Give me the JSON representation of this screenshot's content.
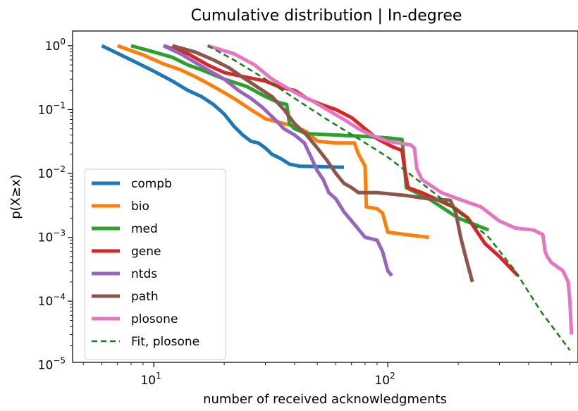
{
  "chart_data": {
    "type": "line",
    "title": "Cumulative distribution | In-degree",
    "xlabel": "number of received acknowledgments",
    "ylabel": "p(X≥x)",
    "xscale": "log",
    "yscale": "log",
    "xlim": [
      4.5,
      650
    ],
    "ylim": [
      1.1e-05,
      1.7
    ],
    "x_ticks": [
      {
        "value": 10,
        "base": "10",
        "exp": "1"
      },
      {
        "value": 100,
        "base": "10",
        "exp": "2"
      }
    ],
    "y_ticks": [
      {
        "value": 1,
        "base": "10",
        "exp": "0"
      },
      {
        "value": 0.1,
        "base": "10",
        "exp": "−1"
      },
      {
        "value": 0.01,
        "base": "10",
        "exp": "−2"
      },
      {
        "value": 0.001,
        "base": "10",
        "exp": "−3"
      },
      {
        "value": 0.0001,
        "base": "10",
        "exp": "−4"
      },
      {
        "value": 1e-05,
        "base": "10",
        "exp": "−5"
      }
    ],
    "grid": false,
    "legend_position": "lower-left",
    "series": [
      {
        "name": "compb",
        "color": "#1f77b4",
        "dash": "solid",
        "points": [
          [
            6,
            1
          ],
          [
            8,
            0.6
          ],
          [
            10,
            0.4
          ],
          [
            12,
            0.28
          ],
          [
            14,
            0.2
          ],
          [
            16,
            0.16
          ],
          [
            18,
            0.12
          ],
          [
            20,
            0.085
          ],
          [
            22,
            0.055
          ],
          [
            24,
            0.04
          ],
          [
            26,
            0.032
          ],
          [
            28,
            0.03
          ],
          [
            30,
            0.025
          ],
          [
            32,
            0.02
          ],
          [
            35,
            0.017
          ],
          [
            38,
            0.014
          ],
          [
            42,
            0.013
          ],
          [
            50,
            0.0128
          ],
          [
            65,
            0.0125
          ]
        ]
      },
      {
        "name": "bio",
        "color": "#ff7f0e",
        "dash": "solid",
        "points": [
          [
            7,
            1
          ],
          [
            9,
            0.72
          ],
          [
            11,
            0.52
          ],
          [
            13,
            0.42
          ],
          [
            15,
            0.33
          ],
          [
            18,
            0.23
          ],
          [
            22,
            0.15
          ],
          [
            26,
            0.1
          ],
          [
            30,
            0.072
          ],
          [
            35,
            0.062
          ],
          [
            40,
            0.055
          ],
          [
            45,
            0.045
          ],
          [
            50,
            0.032
          ],
          [
            60,
            0.03
          ],
          [
            72,
            0.03
          ],
          [
            75,
            0.02
          ],
          [
            80,
            0.013
          ],
          [
            81,
            0.003
          ],
          [
            90,
            0.0028
          ],
          [
            95,
            0.0024
          ],
          [
            100,
            0.0012
          ],
          [
            120,
            0.0011
          ],
          [
            150,
            0.001
          ]
        ]
      },
      {
        "name": "med",
        "color": "#2ca02c",
        "dash": "solid",
        "points": [
          [
            8,
            1
          ],
          [
            10,
            0.8
          ],
          [
            12,
            0.66
          ],
          [
            14,
            0.5
          ],
          [
            16,
            0.42
          ],
          [
            20,
            0.3
          ],
          [
            25,
            0.23
          ],
          [
            30,
            0.16
          ],
          [
            34,
            0.13
          ],
          [
            37,
            0.12
          ],
          [
            38,
            0.06
          ],
          [
            40,
            0.05
          ],
          [
            45,
            0.042
          ],
          [
            60,
            0.04
          ],
          [
            80,
            0.038
          ],
          [
            100,
            0.036
          ],
          [
            115,
            0.034
          ],
          [
            117,
            0.018
          ],
          [
            120,
            0.006
          ],
          [
            150,
            0.004
          ],
          [
            200,
            0.002
          ],
          [
            270,
            0.0013
          ]
        ]
      },
      {
        "name": "gene",
        "color": "#d62728",
        "dash": "solid",
        "points": [
          [
            11,
            1
          ],
          [
            14,
            0.75
          ],
          [
            17,
            0.5
          ],
          [
            20,
            0.38
          ],
          [
            25,
            0.32
          ],
          [
            30,
            0.28
          ],
          [
            35,
            0.22
          ],
          [
            40,
            0.2
          ],
          [
            45,
            0.15
          ],
          [
            52,
            0.12
          ],
          [
            60,
            0.1
          ],
          [
            70,
            0.075
          ],
          [
            80,
            0.05
          ],
          [
            90,
            0.035
          ],
          [
            105,
            0.026
          ],
          [
            115,
            0.023
          ],
          [
            118,
            0.012
          ],
          [
            122,
            0.006
          ],
          [
            140,
            0.005
          ],
          [
            160,
            0.004
          ],
          [
            190,
            0.003
          ],
          [
            220,
            0.002
          ],
          [
            260,
            0.0008
          ],
          [
            300,
            0.0005
          ],
          [
            360,
            0.00025
          ]
        ]
      },
      {
        "name": "ntds",
        "color": "#9467bd",
        "dash": "solid",
        "points": [
          [
            11,
            1
          ],
          [
            13,
            0.75
          ],
          [
            15,
            0.55
          ],
          [
            17,
            0.42
          ],
          [
            20,
            0.3
          ],
          [
            23,
            0.2
          ],
          [
            26,
            0.15
          ],
          [
            29,
            0.11
          ],
          [
            33,
            0.07
          ],
          [
            36,
            0.05
          ],
          [
            40,
            0.04
          ],
          [
            44,
            0.03
          ],
          [
            47,
            0.018
          ],
          [
            50,
            0.011
          ],
          [
            53,
            0.008
          ],
          [
            56,
            0.005
          ],
          [
            60,
            0.004
          ],
          [
            65,
            0.0025
          ],
          [
            72,
            0.0016
          ],
          [
            80,
            0.001
          ],
          [
            90,
            0.0009
          ],
          [
            95,
            0.0006
          ],
          [
            100,
            0.0003
          ],
          [
            104,
            0.00025
          ]
        ]
      },
      {
        "name": "path",
        "color": "#8c564b",
        "dash": "solid",
        "points": [
          [
            12,
            1
          ],
          [
            15,
            0.8
          ],
          [
            18,
            0.6
          ],
          [
            21,
            0.45
          ],
          [
            24,
            0.32
          ],
          [
            28,
            0.22
          ],
          [
            32,
            0.16
          ],
          [
            36,
            0.1
          ],
          [
            40,
            0.06
          ],
          [
            45,
            0.04
          ],
          [
            50,
            0.025
          ],
          [
            55,
            0.016
          ],
          [
            60,
            0.01
          ],
          [
            65,
            0.007
          ],
          [
            70,
            0.006
          ],
          [
            75,
            0.005
          ],
          [
            90,
            0.005
          ],
          [
            120,
            0.0045
          ],
          [
            150,
            0.004
          ],
          [
            185,
            0.0038
          ],
          [
            195,
            0.0025
          ],
          [
            205,
            0.001
          ],
          [
            215,
            0.0005
          ],
          [
            230,
            0.0002
          ]
        ]
      },
      {
        "name": "plosone",
        "color": "#e377c2",
        "dash": "solid",
        "points": [
          [
            17,
            1
          ],
          [
            22,
            0.75
          ],
          [
            27,
            0.5
          ],
          [
            32,
            0.3
          ],
          [
            37,
            0.22
          ],
          [
            42,
            0.17
          ],
          [
            47,
            0.14
          ],
          [
            55,
            0.1
          ],
          [
            65,
            0.07
          ],
          [
            75,
            0.05
          ],
          [
            85,
            0.04
          ],
          [
            100,
            0.032
          ],
          [
            125,
            0.028
          ],
          [
            130,
            0.025
          ],
          [
            133,
            0.012
          ],
          [
            140,
            0.008
          ],
          [
            170,
            0.005
          ],
          [
            200,
            0.004
          ],
          [
            250,
            0.003
          ],
          [
            300,
            0.0018
          ],
          [
            350,
            0.0014
          ],
          [
            420,
            0.0013
          ],
          [
            460,
            0.0011
          ],
          [
            470,
            0.0006
          ],
          [
            480,
            0.0005
          ],
          [
            500,
            0.0004
          ],
          [
            560,
            0.0003
          ],
          [
            590,
            0.0002
          ],
          [
            600,
            0.0001
          ],
          [
            610,
            3e-05
          ]
        ]
      },
      {
        "name": "Fit, plosone",
        "color": "#1a7f1a",
        "dash": "dashed",
        "points": [
          [
            17,
            1
          ],
          [
            22,
            0.6
          ],
          [
            30,
            0.3
          ],
          [
            40,
            0.15
          ],
          [
            55,
            0.07
          ],
          [
            75,
            0.035
          ],
          [
            100,
            0.018
          ],
          [
            140,
            0.007
          ],
          [
            200,
            0.0025
          ],
          [
            270,
            0.001
          ],
          [
            350,
            0.0003
          ],
          [
            450,
            7e-05
          ],
          [
            600,
            1.7e-05
          ]
        ]
      }
    ]
  }
}
